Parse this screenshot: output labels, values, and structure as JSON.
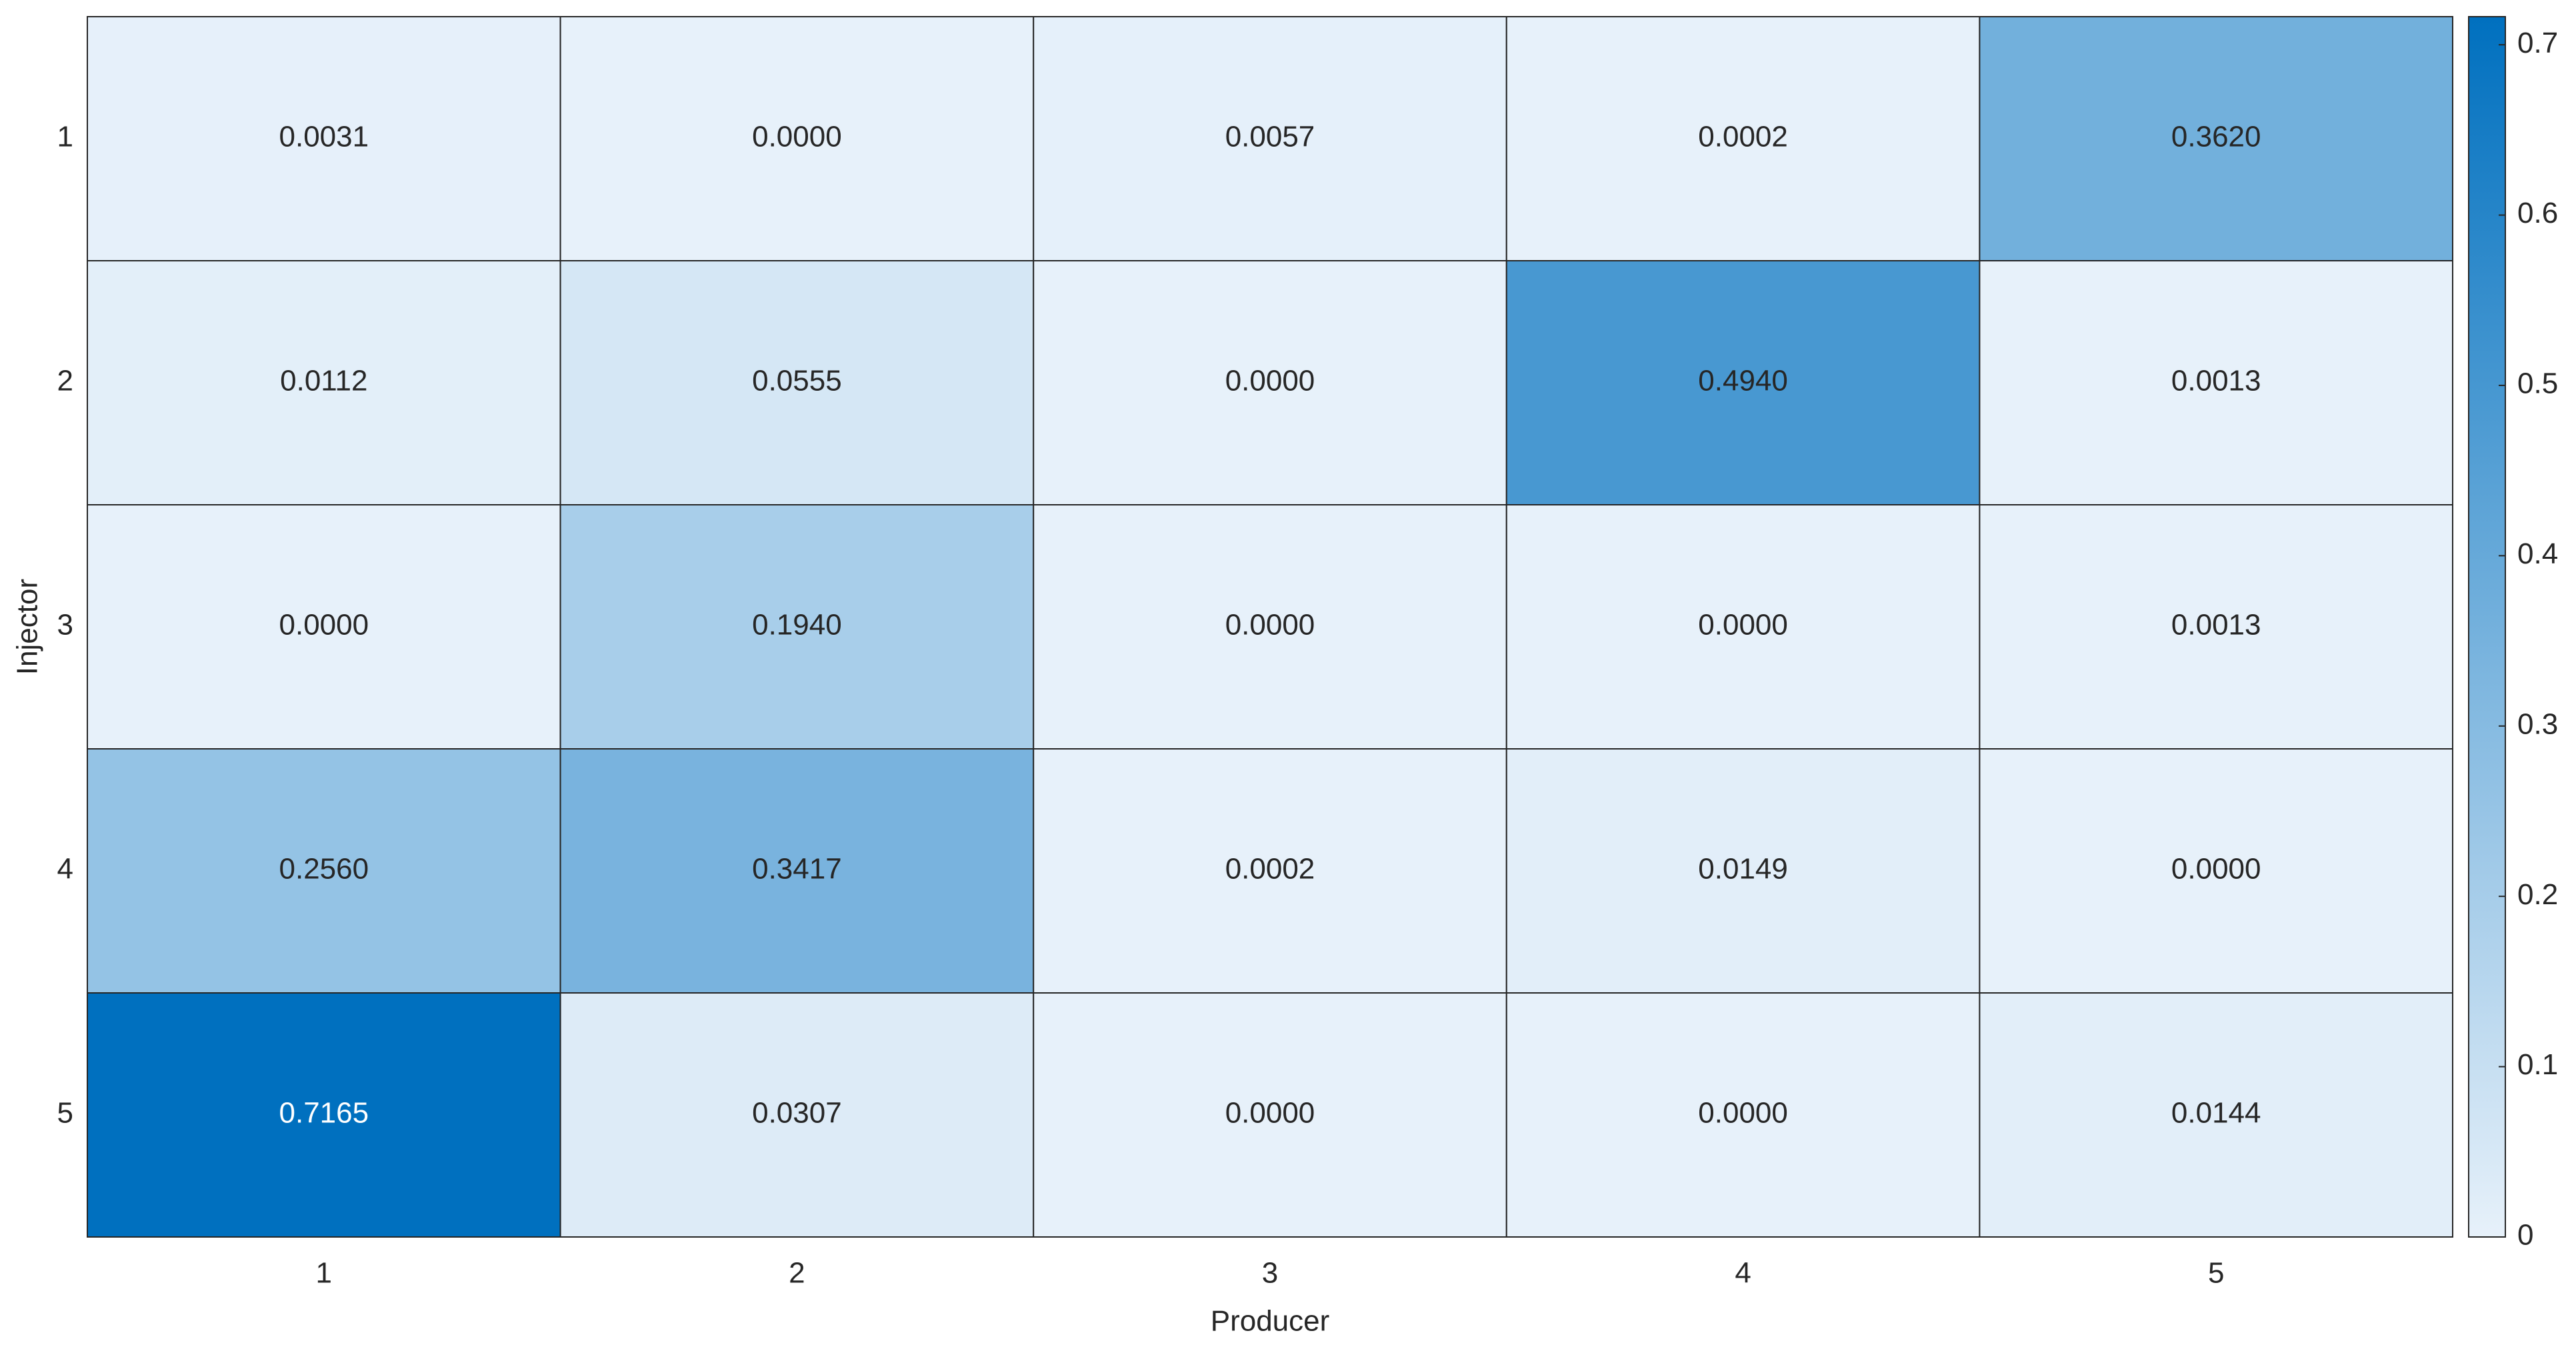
{
  "chart_data": {
    "type": "heatmap",
    "x_label": "Producer",
    "y_label": "Injector",
    "x_categories": [
      "1",
      "2",
      "3",
      "4",
      "5"
    ],
    "y_categories": [
      "1",
      "2",
      "3",
      "4",
      "5"
    ],
    "values": [
      [
        0.0031,
        0.0,
        0.0057,
        0.0002,
        0.362
      ],
      [
        0.0112,
        0.0555,
        0.0,
        0.494,
        0.0013
      ],
      [
        0.0,
        0.194,
        0.0,
        0.0,
        0.0013
      ],
      [
        0.256,
        0.3417,
        0.0002,
        0.0149,
        0.0
      ],
      [
        0.7165,
        0.0307,
        0.0,
        0.0,
        0.0144
      ]
    ],
    "value_labels": [
      [
        "0.0031",
        "0.0000",
        "0.0057",
        "0.0002",
        "0.3620"
      ],
      [
        "0.0112",
        "0.0555",
        "0.0000",
        "0.4940",
        "0.0013"
      ],
      [
        "0.0000",
        "0.1940",
        "0.0000",
        "0.0000",
        "0.0013"
      ],
      [
        "0.2560",
        "0.3417",
        "0.0002",
        "0.0149",
        "0.0000"
      ],
      [
        "0.7165",
        "0.0307",
        "0.0000",
        "0.0000",
        "0.0144"
      ]
    ],
    "clim": [
      0,
      0.7165
    ],
    "cticks": [
      0,
      0.1,
      0.2,
      0.3,
      0.4,
      0.5,
      0.6,
      0.7
    ],
    "colormap": [
      "#e7f1fa",
      "#0070bf"
    ]
  }
}
